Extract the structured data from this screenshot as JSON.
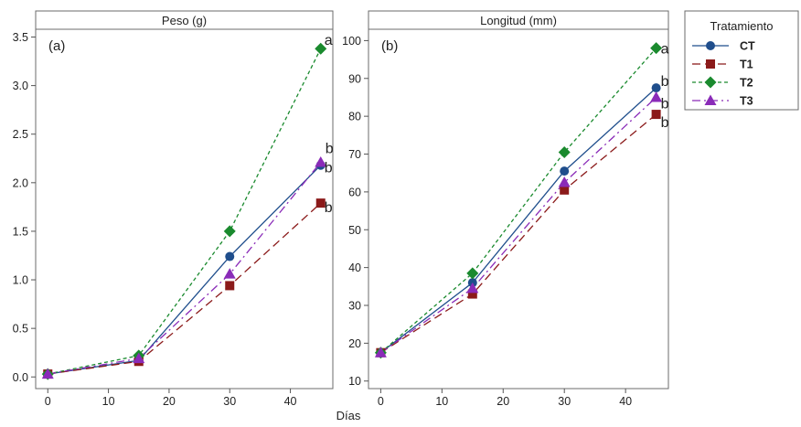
{
  "shared": {
    "xlabel": "Días",
    "legend": {
      "title": "Tratamiento",
      "placement": "right",
      "entries": [
        {
          "name": "CT",
          "color": "#1f4e8c",
          "marker": "circle",
          "dash": "solid"
        },
        {
          "name": "T1",
          "color": "#8b1a1a",
          "marker": "square",
          "dash": "long-dash"
        },
        {
          "name": "T2",
          "color": "#1a8a2e",
          "marker": "diamond",
          "dash": "short-dash"
        },
        {
          "name": "T3",
          "color": "#8a2bb8",
          "marker": "triangle",
          "dash": "dash-dot"
        }
      ]
    }
  },
  "chart_data": [
    {
      "type": "line",
      "title": "Peso (g)",
      "panel_label": "(a)",
      "xlabel": "",
      "ylabel": "",
      "x": [
        0,
        15,
        30,
        45
      ],
      "xlim": [
        -2,
        47
      ],
      "xticks": [
        "0",
        "10",
        "20",
        "30",
        "40"
      ],
      "ylim": [
        -0.12,
        3.58
      ],
      "yticks": [
        "0.0",
        "0.5",
        "1.0",
        "1.5",
        "2.0",
        "2.5",
        "3.0",
        "3.5"
      ],
      "grid": false,
      "series": [
        {
          "name": "CT",
          "values": [
            0.03,
            0.17,
            1.24,
            2.18
          ]
        },
        {
          "name": "T1",
          "values": [
            0.03,
            0.16,
            0.94,
            1.79
          ]
        },
        {
          "name": "T2",
          "values": [
            0.03,
            0.22,
            1.5,
            3.38
          ]
        },
        {
          "name": "T3",
          "values": [
            0.03,
            0.19,
            1.06,
            2.21
          ]
        }
      ],
      "annotations": [
        {
          "text": "a",
          "series": "T2"
        },
        {
          "text": "b",
          "series": "T3"
        },
        {
          "text": "b",
          "series": "CT"
        },
        {
          "text": "b",
          "series": "T1"
        }
      ]
    },
    {
      "type": "line",
      "title": "Longitud (mm)",
      "panel_label": "(b)",
      "xlabel": "",
      "ylabel": "",
      "x": [
        0,
        15,
        30,
        45
      ],
      "xlim": [
        -2,
        47
      ],
      "xticks": [
        "0",
        "10",
        "20",
        "30",
        "40"
      ],
      "ylim": [
        8,
        103
      ],
      "yticks": [
        "10",
        "20",
        "30",
        "40",
        "50",
        "60",
        "70",
        "80",
        "90",
        "100"
      ],
      "grid": false,
      "series": [
        {
          "name": "CT",
          "values": [
            17.5,
            36,
            65.5,
            87.5
          ]
        },
        {
          "name": "T1",
          "values": [
            17.5,
            33,
            60.5,
            80.5
          ]
        },
        {
          "name": "T2",
          "values": [
            17.5,
            38.5,
            70.5,
            98
          ]
        },
        {
          "name": "T3",
          "values": [
            17.5,
            34.5,
            62.5,
            85
          ]
        }
      ],
      "annotations": [
        {
          "text": "a",
          "series": "T2"
        },
        {
          "text": "b",
          "series": "CT"
        },
        {
          "text": "b",
          "series": "T3"
        },
        {
          "text": "b",
          "series": "T1"
        }
      ]
    }
  ]
}
